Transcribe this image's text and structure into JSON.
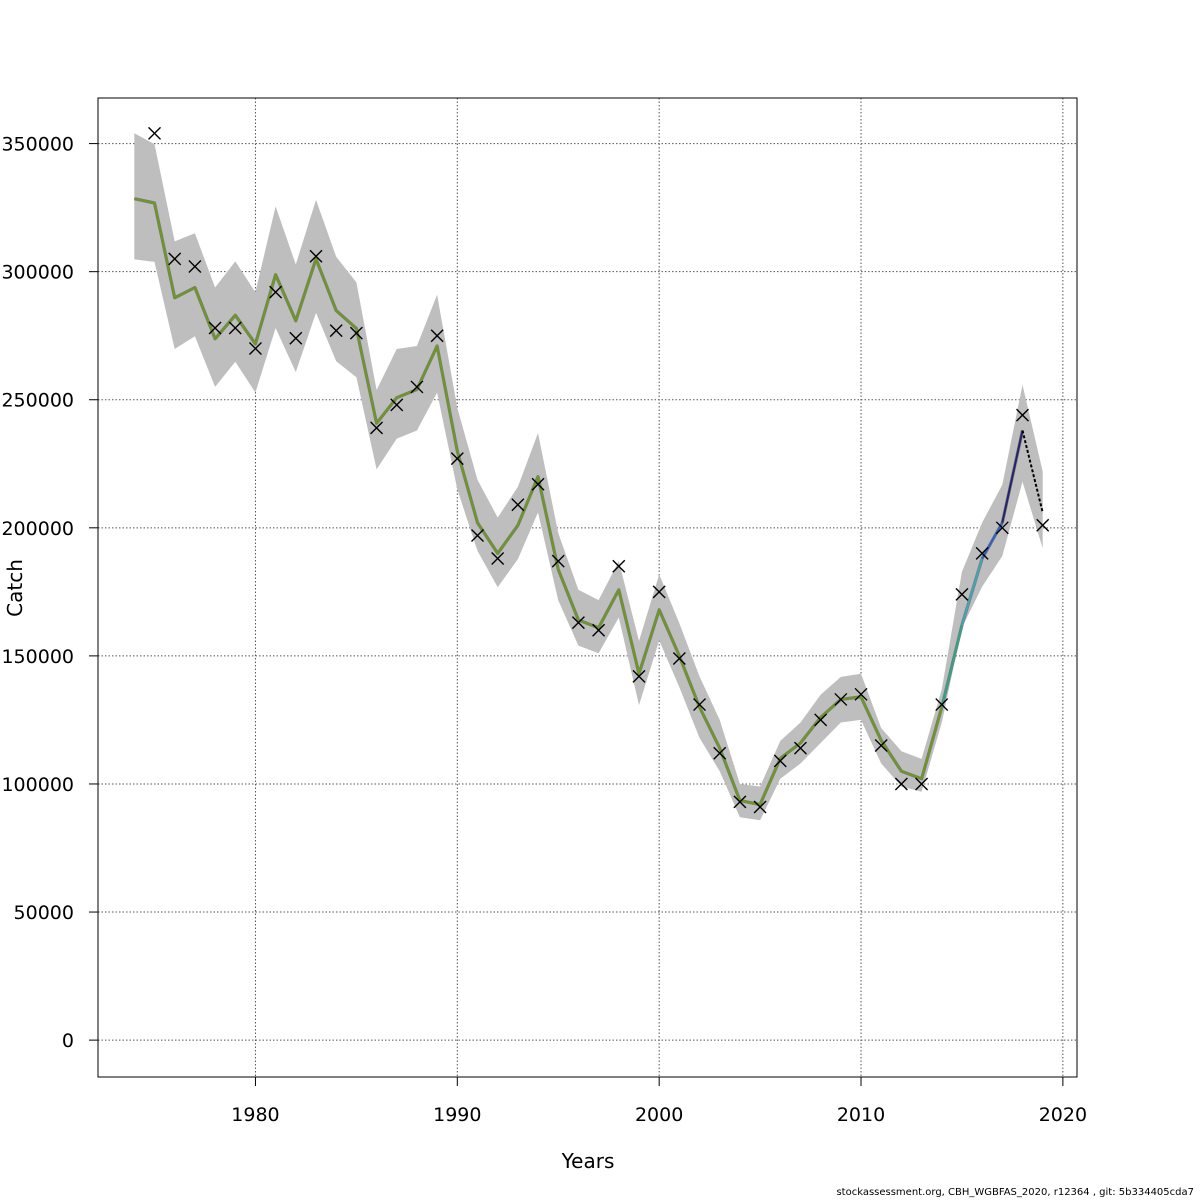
{
  "chart_data": {
    "type": "line",
    "xlabel": "Years",
    "ylabel": "Catch",
    "xlim": [
      1972.2,
      2020.7
    ],
    "ylim": [
      -14400,
      367800
    ],
    "x_ticks": [
      1980,
      1990,
      2000,
      2010,
      2020
    ],
    "y_ticks": [
      0,
      50000,
      100000,
      150000,
      200000,
      250000,
      300000,
      350000
    ],
    "grid": true,
    "legend": "none",
    "years": [
      1974,
      1975,
      1976,
      1977,
      1978,
      1979,
      1980,
      1981,
      1982,
      1983,
      1984,
      1985,
      1986,
      1987,
      1988,
      1989,
      1990,
      1991,
      1992,
      1993,
      1994,
      1995,
      1996,
      1997,
      1998,
      1999,
      2000,
      2001,
      2002,
      2003,
      2004,
      2005,
      2006,
      2007,
      2008,
      2009,
      2010,
      2011,
      2012,
      2013,
      2014,
      2015,
      2016,
      2017,
      2018,
      2019
    ],
    "estimate": [
      328500,
      326800,
      289800,
      293800,
      273800,
      283000,
      271800,
      298800,
      280800,
      305000,
      284800,
      277800,
      240800,
      250800,
      254000,
      271000,
      230000,
      202000,
      190000,
      201000,
      220000,
      183800,
      164000,
      161000,
      175800,
      143000,
      168000,
      150000,
      130000,
      114000,
      93500,
      92000,
      110000,
      116000,
      126000,
      133000,
      134000,
      117000,
      105000,
      102000,
      130000,
      162000,
      188000,
      202000,
      238000,
      206000
    ],
    "upper": [
      354000,
      349800,
      311800,
      315000,
      293800,
      304000,
      292000,
      325500,
      302800,
      328000,
      305800,
      295800,
      253800,
      269800,
      271000,
      291000,
      246800,
      218800,
      204000,
      216000,
      237000,
      198000,
      175800,
      171800,
      187000,
      155800,
      181800,
      162800,
      142000,
      125000,
      100000,
      99000,
      116800,
      124000,
      134800,
      141800,
      143000,
      121800,
      112800,
      109800,
      137000,
      182800,
      202000,
      216800,
      255800,
      222000
    ],
    "lower": [
      304800,
      303800,
      269800,
      274800,
      255000,
      264800,
      252800,
      278000,
      260800,
      284000,
      265000,
      258800,
      222800,
      234800,
      238000,
      252800,
      215000,
      191000,
      176800,
      187800,
      206000,
      171800,
      154000,
      151000,
      165000,
      130800,
      156000,
      137800,
      118000,
      105000,
      87000,
      85800,
      102000,
      108000,
      116000,
      124000,
      125000,
      108000,
      99000,
      97000,
      124000,
      161000,
      177000,
      189000,
      218000,
      192000
    ],
    "observed": [
      null,
      354000,
      305000,
      302000,
      278000,
      278000,
      270000,
      292000,
      274000,
      306000,
      277000,
      276000,
      239000,
      248000,
      255000,
      275000,
      227000,
      197000,
      188000,
      209000,
      217000,
      187000,
      163000,
      160000,
      185000,
      142000,
      175000,
      149000,
      131000,
      112000,
      93000,
      91000,
      109000,
      114000,
      125000,
      133000,
      135000,
      115000,
      100000,
      100000,
      131000,
      174000,
      190000,
      200000,
      244000,
      201000
    ],
    "series": [
      {
        "name": "",
        "color": "#6a9a1f",
        "from": 1974,
        "to": 2014
      },
      {
        "name": "",
        "color": "#2ca58a",
        "from": 2014,
        "to": 2015
      },
      {
        "name": "",
        "color": "#3fa8b8",
        "from": 2015,
        "to": 2016
      },
      {
        "name": "",
        "color": "#2b62c8",
        "from": 2016,
        "to": 2017
      },
      {
        "name": "",
        "color": "#25226e",
        "from": 2017,
        "to": 2018
      },
      {
        "name": "",
        "color": "#000000",
        "from": 2018,
        "to": 2019,
        "dashed": true
      }
    ],
    "band_color": "#bebebe",
    "observed_marker": "x"
  },
  "footer": "stockassessment.org, CBH_WGBFAS_2020, r12364 , git: 5b334405cda7"
}
